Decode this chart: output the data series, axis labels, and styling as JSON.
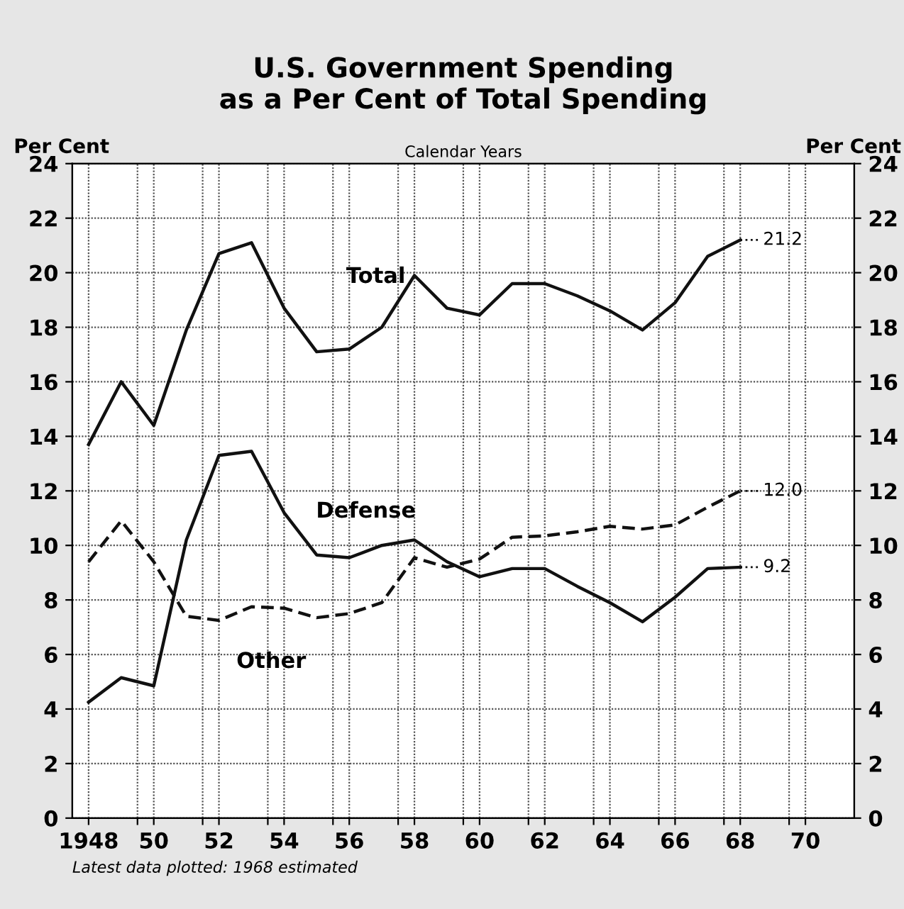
{
  "chart_data": {
    "type": "line",
    "title": "U.S. Government Spending\nas a Per Cent of Total Spending",
    "xlabel": "Calendar Years",
    "ylabel": "Per Cent",
    "y2label": "Per Cent",
    "x": [
      1948,
      1949,
      1950,
      1951,
      1952,
      1953,
      1954,
      1955,
      1956,
      1957,
      1958,
      1959,
      1960,
      1961,
      1962,
      1963,
      1964,
      1965,
      1966,
      1967,
      1968
    ],
    "series": [
      {
        "name": "Total",
        "color": "#111111",
        "line_style": "solid",
        "values": [
          13.7,
          16.0,
          14.4,
          17.9,
          20.7,
          21.1,
          18.7,
          17.1,
          17.2,
          18.0,
          19.9,
          18.7,
          18.45,
          19.6,
          19.6,
          19.15,
          18.6,
          17.9,
          18.9,
          20.6,
          21.2
        ],
        "value_labels": [
          null,
          null,
          null,
          null,
          null,
          null,
          null,
          null,
          null,
          null,
          null,
          null,
          null,
          null,
          null,
          null,
          null,
          null,
          null,
          null,
          "21.2"
        ]
      },
      {
        "name": "Defense",
        "color": "#111111",
        "line_style": "solid",
        "values": [
          4.25,
          5.15,
          4.85,
          10.2,
          13.3,
          13.45,
          11.2,
          9.65,
          9.55,
          10.0,
          10.2,
          9.4,
          8.85,
          9.15,
          9.15,
          8.5,
          7.9,
          7.2,
          8.1,
          9.15,
          9.2
        ],
        "value_labels": [
          null,
          null,
          null,
          null,
          null,
          null,
          null,
          null,
          null,
          null,
          null,
          null,
          null,
          null,
          null,
          null,
          null,
          null,
          null,
          null,
          "9.2"
        ]
      },
      {
        "name": "Other",
        "color": "#111111",
        "line_style": "dashed",
        "values": [
          9.4,
          10.9,
          9.4,
          7.4,
          7.25,
          7.75,
          7.7,
          7.35,
          7.5,
          7.9,
          9.55,
          9.2,
          9.5,
          10.3,
          10.35,
          10.5,
          10.7,
          10.6,
          10.75,
          11.4,
          12.0
        ],
        "value_labels": [
          null,
          null,
          null,
          null,
          null,
          null,
          null,
          null,
          null,
          null,
          null,
          null,
          null,
          null,
          null,
          null,
          null,
          null,
          null,
          null,
          "12.0"
        ]
      }
    ],
    "xlim": [
      1947.5,
      1971.5
    ],
    "xticks": [
      {
        "value": 1948,
        "label": "1948"
      },
      {
        "value": 1949.5,
        "label": null
      },
      {
        "value": 1950,
        "label": "50"
      },
      {
        "value": 1951.5,
        "label": null
      },
      {
        "value": 1952,
        "label": "52"
      },
      {
        "value": 1953.5,
        "label": null
      },
      {
        "value": 1954,
        "label": "54"
      },
      {
        "value": 1955.5,
        "label": null
      },
      {
        "value": 1956,
        "label": "56"
      },
      {
        "value": 1957.5,
        "label": null
      },
      {
        "value": 1958,
        "label": "58"
      },
      {
        "value": 1959.5,
        "label": null
      },
      {
        "value": 1960,
        "label": "60"
      },
      {
        "value": 1961.5,
        "label": null
      },
      {
        "value": 1962,
        "label": "62"
      },
      {
        "value": 1963.5,
        "label": null
      },
      {
        "value": 1964,
        "label": "64"
      },
      {
        "value": 1965.5,
        "label": null
      },
      {
        "value": 1966,
        "label": "66"
      },
      {
        "value": 1967.5,
        "label": null
      },
      {
        "value": 1968,
        "label": "68"
      },
      {
        "value": 1969.5,
        "label": null
      },
      {
        "value": 1970,
        "label": "70"
      }
    ],
    "ylim": [
      0,
      24
    ],
    "yticks": [
      0,
      2,
      4,
      6,
      8,
      10,
      12,
      14,
      16,
      18,
      20,
      22,
      24
    ],
    "y2lim": [
      0,
      24
    ],
    "y2ticks": [
      0,
      2,
      4,
      6,
      8,
      10,
      12,
      14,
      16,
      18,
      20,
      22,
      24
    ],
    "grid": true,
    "legend": false,
    "marker": "none",
    "annotations": [
      "Latest data plotted: 1968 estimated"
    ]
  }
}
